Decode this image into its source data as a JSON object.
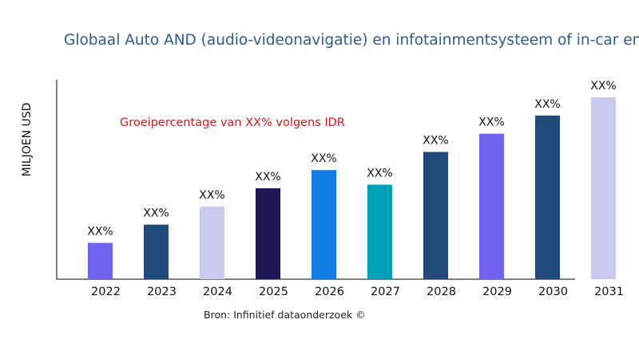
{
  "chart_data": {
    "type": "bar",
    "title": "Globaal Auto AND (audio-videonavigatie) en infotainmentsysteem of in-car ent",
    "xlabel": "",
    "ylabel": "MILJOEN USD",
    "annotation": "Groeipercentage van XX% volgens IDR",
    "source": "Bron: Infinitief dataonderzoek ©",
    "categories": [
      "2022",
      "2023",
      "2024",
      "2025",
      "2026",
      "2027",
      "2028",
      "2029",
      "2030",
      "2031"
    ],
    "values": [
      20,
      30,
      40,
      50,
      60,
      52,
      70,
      80,
      90,
      100
    ],
    "data_labels": [
      "XX%",
      "XX%",
      "XX%",
      "XX%",
      "XX%",
      "XX%",
      "XX%",
      "XX%",
      "XX%",
      "XX%"
    ],
    "colors": [
      "#6f63f0",
      "#1f4a7a",
      "#c8caf0",
      "#1e1856",
      "#0f7be3",
      "#00a0b8",
      "#1f4a7a",
      "#6f63f0",
      "#1f4a7a",
      "#c8caf0"
    ],
    "ylim": [
      0,
      100
    ],
    "grid": false,
    "legend": "none"
  }
}
